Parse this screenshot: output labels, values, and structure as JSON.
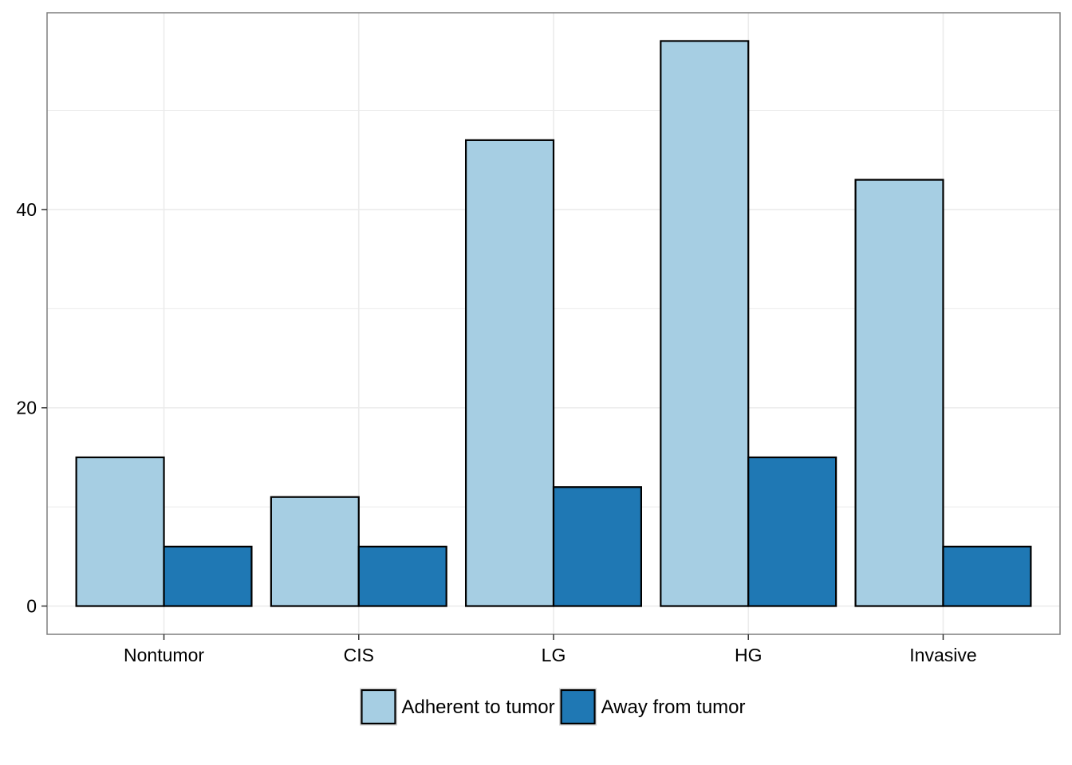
{
  "chart_data": {
    "type": "bar",
    "categories": [
      "Nontumor",
      "CIS",
      "LG",
      "HG",
      "Invasive"
    ],
    "series": [
      {
        "name": "Adherent to tumor",
        "values": [
          15,
          11,
          47,
          57,
          43
        ],
        "color": "#a6cee3"
      },
      {
        "name": "Away from tumor",
        "values": [
          6,
          6,
          12,
          15,
          6
        ],
        "color": "#1f78b4"
      }
    ],
    "title": "",
    "xlabel": "",
    "ylabel": "",
    "ylim": [
      -2.85,
      59.85
    ],
    "yticks": [
      "0",
      "20",
      "40"
    ],
    "grid": true,
    "legend_position": "bottom",
    "bar_outline_color": "#000000",
    "panel_border_color": "#7f7f7f",
    "grid_color": "#ebebeb"
  }
}
